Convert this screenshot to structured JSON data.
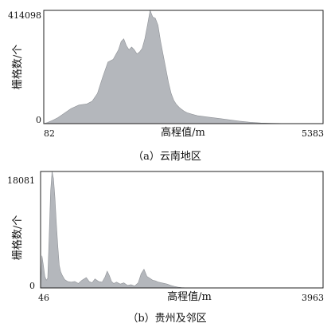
{
  "chart_data": [
    {
      "type": "area",
      "caption": "（a）云南地区",
      "xlabel": "高程值/m",
      "ylabel": "栅格数/个",
      "xlim": [
        82,
        5383
      ],
      "ylim": [
        0,
        414098
      ],
      "x_ticks": [
        "82",
        "5383"
      ],
      "y_ticks": [
        "0",
        "414098"
      ],
      "x": [
        82,
        150,
        250,
        350,
        450,
        600,
        750,
        900,
        1000,
        1100,
        1200,
        1300,
        1400,
        1500,
        1550,
        1600,
        1650,
        1700,
        1750,
        1800,
        1850,
        1900,
        1950,
        2000,
        2050,
        2100,
        2150,
        2200,
        2250,
        2300,
        2350,
        2400,
        2450,
        2500,
        2550,
        2600,
        2650,
        2700,
        2750,
        2800,
        2900,
        3000,
        3200,
        3400,
        3600,
        3800,
        4000,
        4200,
        4400,
        4600,
        4800,
        5000,
        5383
      ],
      "y": [
        0,
        4000,
        12000,
        22000,
        35000,
        55000,
        68000,
        72000,
        82000,
        110000,
        170000,
        225000,
        235000,
        270000,
        300000,
        310000,
        285000,
        270000,
        280000,
        270000,
        255000,
        262000,
        275000,
        310000,
        360000,
        414000,
        390000,
        385000,
        360000,
        300000,
        250000,
        200000,
        150000,
        110000,
        85000,
        70000,
        60000,
        52000,
        45000,
        40000,
        34000,
        29000,
        24000,
        19000,
        14000,
        9000,
        5000,
        2500,
        1200,
        500,
        200,
        0,
        0
      ]
    },
    {
      "type": "area",
      "caption": "（b）贵州及邻区",
      "xlabel": "高程值/m",
      "ylabel": "栅格数/个",
      "xlim": [
        46,
        3963
      ],
      "ylim": [
        0,
        18081
      ],
      "x_ticks": [
        "46",
        "3963"
      ],
      "y_ticks": [
        "0",
        "18081"
      ],
      "x": [
        46,
        65,
        85,
        105,
        125,
        145,
        165,
        185,
        205,
        225,
        245,
        265,
        285,
        305,
        325,
        345,
        380,
        420,
        470,
        520,
        570,
        620,
        680,
        720,
        760,
        800,
        850,
        900,
        940,
        970,
        1000,
        1030,
        1060,
        1100,
        1150,
        1200,
        1250,
        1300,
        1350,
        1400,
        1440,
        1480,
        1520,
        1560,
        1600,
        1640,
        1680,
        1720,
        1760,
        1800,
        1850,
        1900,
        1950,
        2000,
        2100,
        3963
      ],
      "y": [
        0,
        5000,
        3500,
        1800,
        1200,
        1500,
        8000,
        15000,
        18081,
        17000,
        14000,
        10000,
        6500,
        3500,
        2500,
        2000,
        1300,
        1000,
        900,
        1000,
        700,
        1200,
        1600,
        1000,
        800,
        1400,
        1000,
        900,
        1700,
        2600,
        1900,
        1000,
        700,
        900,
        600,
        800,
        400,
        500,
        300,
        800,
        2200,
        2900,
        1800,
        1500,
        1200,
        1100,
        900,
        800,
        700,
        600,
        400,
        250,
        120,
        60,
        0,
        0
      ]
    }
  ]
}
